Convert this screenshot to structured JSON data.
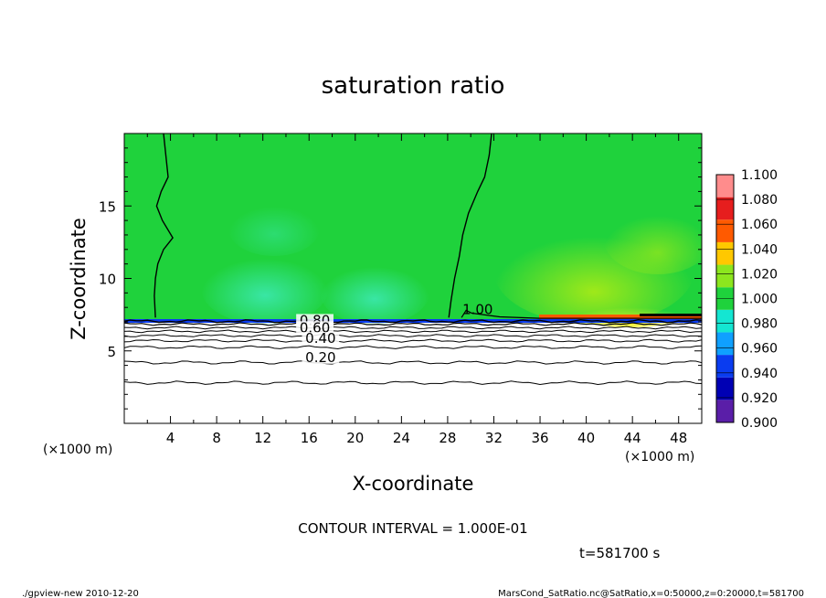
{
  "chart_data": {
    "type": "contour",
    "title": "saturation ratio",
    "xlabel": "X-coordinate",
    "ylabel": "Z-coordinate",
    "x_unit_left": "(×1000 m)",
    "x_unit_right": "(×1000 m)",
    "xlim": [
      0,
      50
    ],
    "ylim": [
      0,
      20
    ],
    "x_ticks": [
      4,
      8,
      12,
      16,
      20,
      24,
      28,
      32,
      36,
      40,
      44,
      48
    ],
    "x_tick_labels": [
      "4",
      "8",
      "12",
      "16",
      "20",
      "24",
      "28",
      "32",
      "36",
      "40",
      "44",
      "48"
    ],
    "y_ticks": [
      5,
      10,
      15
    ],
    "y_tick_labels": [
      "5",
      "10",
      "15"
    ],
    "colorbar": {
      "levels": [
        0.9,
        0.92,
        0.94,
        0.96,
        0.98,
        1.0,
        1.02,
        1.04,
        1.06,
        1.08,
        1.1
      ],
      "labels": [
        "0.900",
        "0.920",
        "0.940",
        "0.960",
        "0.980",
        "1.000",
        "1.020",
        "1.040",
        "1.060",
        "1.080",
        "1.100"
      ],
      "colors": [
        "#5a1ea8",
        "#0000b4",
        "#0a3cf0",
        "#0fa0ff",
        "#14e6d2",
        "#1fd23c",
        "#8ce61e",
        "#ffc800",
        "#ff5a00",
        "#e61e1e",
        "#ff8c8c"
      ]
    },
    "contour_labels": [
      {
        "text": "1.00",
        "x": 30.6,
        "z": 7.6
      },
      {
        "text": "0.80",
        "x": 16.5,
        "z": 6.85
      },
      {
        "text": "0.60",
        "x": 16.5,
        "z": 6.35
      },
      {
        "text": "0.40",
        "x": 17.0,
        "z": 5.6
      },
      {
        "text": "0.20",
        "x": 17.0,
        "z": 4.3
      }
    ],
    "contour_interval_text": "CONTOUR INTERVAL = 1.000E-01",
    "time_text": "t=581700 s"
  },
  "footer": {
    "left": "./gpview-new  2010-12-20",
    "right": "MarsCond_SatRatio.nc@SatRatio,x=0:50000,z=0:20000,t=581700"
  }
}
